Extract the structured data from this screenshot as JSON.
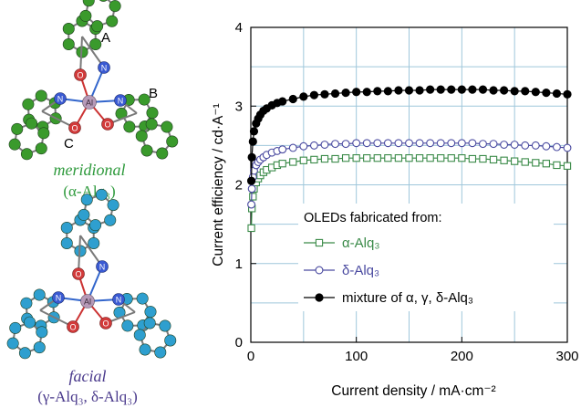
{
  "molecules": {
    "meridional": {
      "name": "meridional",
      "formula": "(α-Alq₃)",
      "site_labels": [
        "A",
        "B",
        "C"
      ],
      "atom_labels": {
        "metal": "Al",
        "oxygen": "O",
        "nitrogen": "N"
      },
      "colors": {
        "carbon": "#3a9a2c",
        "name_text": "#2e9a3c"
      }
    },
    "facial": {
      "name": "facial",
      "formula": "(γ-Alq₃, δ-Alq₃)",
      "atom_labels": {
        "metal": "Al",
        "oxygen": "O",
        "nitrogen": "N"
      },
      "colors": {
        "carbon": "#2e9fcf",
        "name_text": "#4a3a8c"
      }
    }
  },
  "chart_data": {
    "type": "line",
    "xlabel": "Current density / mA·cm⁻²",
    "ylabel": "Current efficiency / cd·A⁻¹",
    "xlim": [
      0,
      300
    ],
    "ylim": [
      0,
      4
    ],
    "xticks": [
      0,
      100,
      200,
      300
    ],
    "yticks": [
      0,
      1,
      2,
      3,
      4
    ],
    "grid": true,
    "legend": {
      "placement": "lower-right",
      "title": "OLEDs fabricated from:"
    },
    "series": [
      {
        "name": "α-Alq₃",
        "marker": "open-square",
        "color": "#3a8a48",
        "x": [
          0.5,
          1,
          2,
          3,
          5,
          7,
          9,
          12,
          15,
          20,
          25,
          30,
          40,
          50,
          60,
          70,
          80,
          90,
          100,
          110,
          120,
          130,
          140,
          150,
          160,
          170,
          180,
          190,
          200,
          210,
          220,
          230,
          240,
          250,
          260,
          270,
          280,
          290,
          300
        ],
        "y": [
          1.45,
          1.7,
          1.85,
          1.95,
          2.03,
          2.08,
          2.12,
          2.16,
          2.19,
          2.22,
          2.25,
          2.27,
          2.29,
          2.31,
          2.32,
          2.33,
          2.33,
          2.34,
          2.34,
          2.34,
          2.34,
          2.34,
          2.34,
          2.34,
          2.34,
          2.34,
          2.34,
          2.34,
          2.34,
          2.33,
          2.33,
          2.32,
          2.31,
          2.3,
          2.29,
          2.28,
          2.27,
          2.25,
          2.24
        ]
      },
      {
        "name": "δ-Alq₃",
        "marker": "open-circle",
        "color": "#4a4aa0",
        "x": [
          0.5,
          1,
          2,
          3,
          5,
          7,
          9,
          12,
          15,
          20,
          25,
          30,
          40,
          50,
          60,
          70,
          80,
          90,
          100,
          110,
          120,
          130,
          140,
          150,
          160,
          170,
          180,
          190,
          200,
          210,
          220,
          230,
          240,
          250,
          260,
          270,
          280,
          290,
          300
        ],
        "y": [
          1.75,
          1.95,
          2.1,
          2.18,
          2.25,
          2.29,
          2.32,
          2.35,
          2.38,
          2.41,
          2.43,
          2.45,
          2.47,
          2.49,
          2.5,
          2.51,
          2.52,
          2.52,
          2.53,
          2.53,
          2.53,
          2.53,
          2.53,
          2.53,
          2.53,
          2.53,
          2.53,
          2.53,
          2.53,
          2.53,
          2.52,
          2.52,
          2.51,
          2.51,
          2.5,
          2.5,
          2.49,
          2.48,
          2.47
        ]
      },
      {
        "name": "mixture of α, γ, δ-Alq₃",
        "marker": "filled-circle",
        "color": "#000000",
        "x": [
          0.5,
          1,
          2,
          3,
          5,
          7,
          9,
          12,
          15,
          20,
          25,
          30,
          40,
          50,
          60,
          70,
          80,
          90,
          100,
          110,
          120,
          130,
          140,
          150,
          160,
          170,
          180,
          190,
          200,
          210,
          220,
          230,
          240,
          250,
          260,
          270,
          280,
          290,
          300
        ],
        "y": [
          2.05,
          2.35,
          2.55,
          2.68,
          2.78,
          2.84,
          2.89,
          2.94,
          2.97,
          3.01,
          3.04,
          3.06,
          3.09,
          3.12,
          3.14,
          3.15,
          3.16,
          3.17,
          3.18,
          3.18,
          3.19,
          3.19,
          3.2,
          3.2,
          3.2,
          3.21,
          3.21,
          3.21,
          3.21,
          3.21,
          3.21,
          3.2,
          3.2,
          3.19,
          3.19,
          3.18,
          3.17,
          3.16,
          3.15
        ]
      }
    ]
  }
}
